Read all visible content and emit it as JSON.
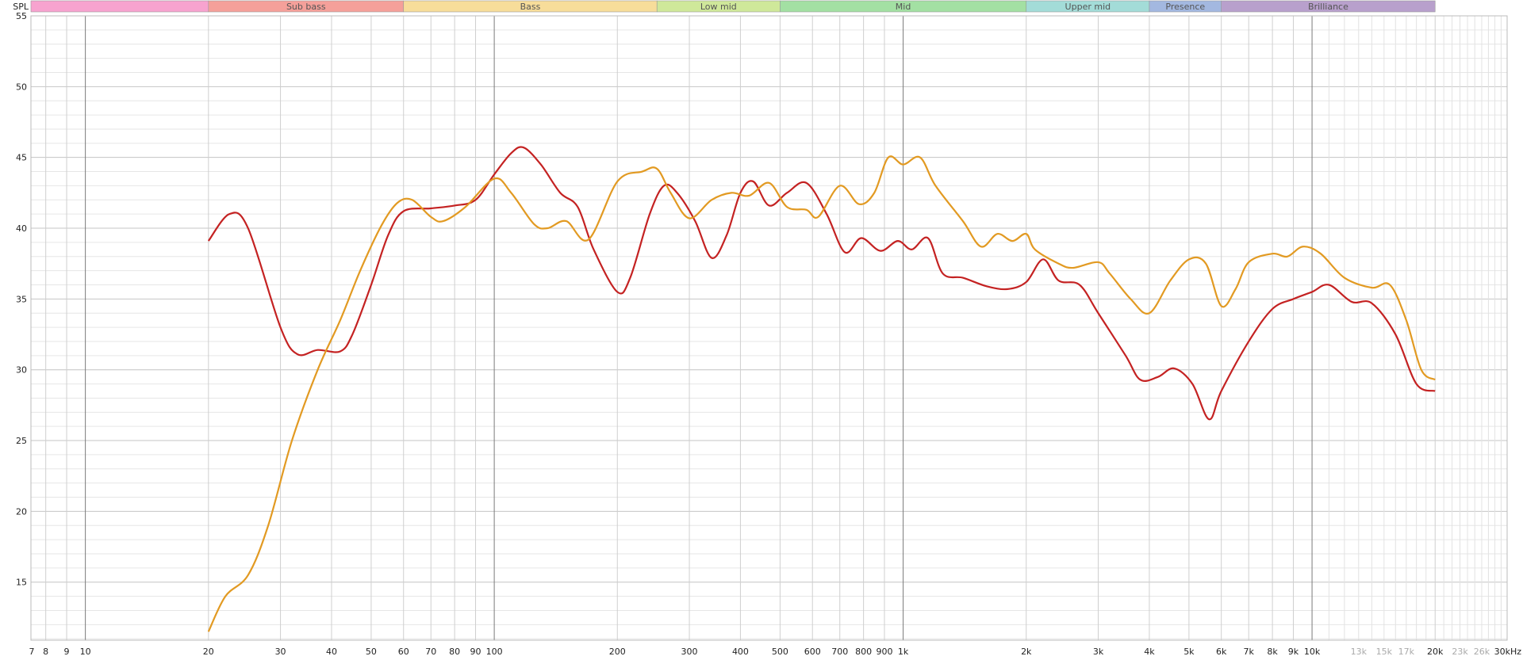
{
  "chart_data": {
    "type": "line",
    "ylabel": "SPL",
    "xunit": "kHz",
    "x_scale": "log",
    "xlim": [
      7.36,
      30000
    ],
    "ylim": [
      10.9,
      55
    ],
    "grid": true,
    "y_ticks": [
      55,
      50,
      45,
      40,
      35,
      30,
      25,
      20,
      15
    ],
    "x_ticks": [
      {
        "f": 7,
        "label": "7"
      },
      {
        "f": 8,
        "label": "8"
      },
      {
        "f": 9,
        "label": "9"
      },
      {
        "f": 10,
        "label": "10"
      },
      {
        "f": 20,
        "label": "20"
      },
      {
        "f": 30,
        "label": "30"
      },
      {
        "f": 40,
        "label": "40"
      },
      {
        "f": 50,
        "label": "50"
      },
      {
        "f": 60,
        "label": "60"
      },
      {
        "f": 70,
        "label": "70"
      },
      {
        "f": 80,
        "label": "80"
      },
      {
        "f": 90,
        "label": "90"
      },
      {
        "f": 100,
        "label": "100"
      },
      {
        "f": 200,
        "label": "200"
      },
      {
        "f": 300,
        "label": "300"
      },
      {
        "f": 400,
        "label": "400"
      },
      {
        "f": 500,
        "label": "500"
      },
      {
        "f": 600,
        "label": "600"
      },
      {
        "f": 700,
        "label": "700"
      },
      {
        "f": 800,
        "label": "800"
      },
      {
        "f": 900,
        "label": "900"
      },
      {
        "f": 1000,
        "label": "1k"
      },
      {
        "f": 2000,
        "label": "2k"
      },
      {
        "f": 3000,
        "label": "3k"
      },
      {
        "f": 4000,
        "label": "4k"
      },
      {
        "f": 5000,
        "label": "5k"
      },
      {
        "f": 6000,
        "label": "6k"
      },
      {
        "f": 7000,
        "label": "7k"
      },
      {
        "f": 8000,
        "label": "8k"
      },
      {
        "f": 9000,
        "label": "9k"
      },
      {
        "f": 10000,
        "label": "10k"
      },
      {
        "f": 13000,
        "label": "13k",
        "light": true
      },
      {
        "f": 15000,
        "label": "15k",
        "light": true
      },
      {
        "f": 17000,
        "label": "17k",
        "light": true
      },
      {
        "f": 20000,
        "label": "20k"
      },
      {
        "f": 23000,
        "label": "23k",
        "light": true
      },
      {
        "f": 26000,
        "label": "26k",
        "light": true
      },
      {
        "f": 30000,
        "label": "30kHz"
      }
    ],
    "bands": [
      {
        "label": "",
        "from": 7.36,
        "to": 20,
        "color": "#f7a3cf"
      },
      {
        "label": "Sub bass",
        "from": 20,
        "to": 60,
        "color": "#f5a09a"
      },
      {
        "label": "Bass",
        "from": 60,
        "to": 250,
        "color": "#f7dd9a"
      },
      {
        "label": "Low mid",
        "from": 250,
        "to": 500,
        "color": "#cfe89a"
      },
      {
        "label": "Mid",
        "from": 500,
        "to": 2000,
        "color": "#a3e0a3"
      },
      {
        "label": "Upper mid",
        "from": 2000,
        "to": 4000,
        "color": "#a3dcd8"
      },
      {
        "label": "Presence",
        "from": 4000,
        "to": 6000,
        "color": "#a3b8e0"
      },
      {
        "label": "Brilliance",
        "from": 6000,
        "to": 20000,
        "color": "#b8a0cc"
      }
    ],
    "series": [
      {
        "color": "#c42222",
        "x": [
          20,
          22.5,
          25,
          30,
          33,
          37,
          42,
          45,
          50,
          55,
          60,
          70,
          80,
          90,
          100,
          110,
          118,
          130,
          145,
          160,
          175,
          200,
          215,
          240,
          260,
          280,
          310,
          340,
          370,
          400,
          430,
          470,
          520,
          580,
          650,
          720,
          790,
          880,
          970,
          1050,
          1150,
          1250,
          1400,
          1600,
          1800,
          2000,
          2200,
          2400,
          2700,
          3000,
          3500,
          3800,
          4200,
          4600,
          5100,
          5600,
          6000,
          7000,
          8000,
          9000,
          10000,
          11000,
          12500,
          14000,
          16000,
          18000,
          20000
        ],
        "y": [
          39.1,
          41.0,
          40.0,
          33.0,
          31.1,
          31.4,
          31.3,
          32.5,
          36.0,
          39.5,
          41.2,
          41.4,
          41.6,
          42.0,
          43.8,
          45.3,
          45.7,
          44.5,
          42.5,
          41.5,
          38.5,
          35.5,
          36.5,
          41.0,
          43.0,
          42.5,
          40.5,
          37.9,
          39.5,
          42.5,
          43.3,
          41.6,
          42.5,
          43.2,
          41.0,
          38.3,
          39.3,
          38.4,
          39.1,
          38.5,
          39.3,
          36.8,
          36.5,
          35.9,
          35.7,
          36.2,
          37.8,
          36.3,
          36.0,
          34.0,
          31.0,
          29.3,
          29.5,
          30.1,
          29.0,
          26.5,
          28.5,
          32.0,
          34.3,
          35.0,
          35.5,
          36.0,
          34.8,
          34.7,
          32.5,
          29.0,
          28.5
        ]
      },
      {
        "color": "#e29a22",
        "x": [
          20,
          22,
          25,
          28,
          32,
          37,
          42,
          47,
          53,
          58,
          63,
          70,
          75,
          85,
          100,
          110,
          125,
          135,
          150,
          170,
          200,
          230,
          250,
          270,
          300,
          340,
          380,
          420,
          470,
          520,
          580,
          620,
          700,
          780,
          850,
          920,
          1000,
          1100,
          1200,
          1400,
          1550,
          1700,
          1850,
          2000,
          2100,
          2400,
          2600,
          3000,
          3200,
          3600,
          4000,
          4500,
          5000,
          5500,
          6000,
          6500,
          7000,
          8000,
          8700,
          9500,
          10500,
          12000,
          14000,
          15500,
          17000,
          18500,
          20000
        ],
        "y": [
          11.5,
          14.0,
          15.5,
          19.0,
          25.0,
          30.0,
          33.5,
          37.0,
          40.2,
          41.8,
          42.0,
          40.8,
          40.5,
          41.5,
          43.5,
          42.5,
          40.3,
          40.0,
          40.5,
          39.2,
          43.3,
          44.0,
          44.2,
          42.5,
          40.7,
          42.0,
          42.5,
          42.3,
          43.2,
          41.5,
          41.3,
          40.8,
          43.0,
          41.7,
          42.5,
          45.0,
          44.5,
          45.0,
          43.0,
          40.5,
          38.7,
          39.6,
          39.1,
          39.6,
          38.5,
          37.5,
          37.2,
          37.6,
          36.8,
          35.0,
          34.0,
          36.3,
          37.8,
          37.5,
          34.5,
          35.7,
          37.6,
          38.2,
          38.0,
          38.7,
          38.2,
          36.5,
          35.8,
          36.0,
          33.5,
          30.0,
          29.3
        ]
      }
    ]
  }
}
